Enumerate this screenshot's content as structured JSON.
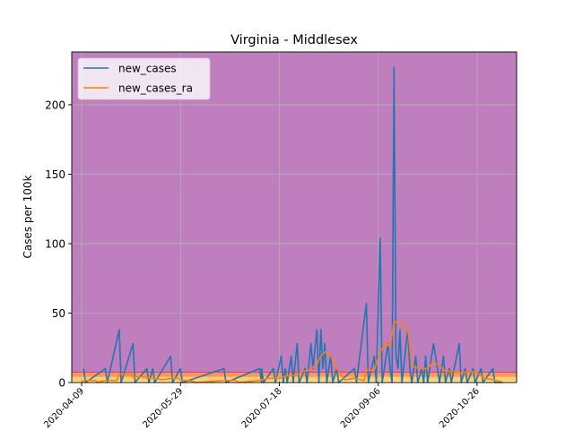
{
  "chart_data": {
    "type": "line",
    "title": "Virginia - Middlesex",
    "xlabel": "",
    "ylabel": "Cases per 100k",
    "x_ticks": [
      "2020-04-09",
      "2020-05-29",
      "2020-07-18",
      "2020-09-06",
      "2020-10-26"
    ],
    "xlim": [
      "2020-04-04",
      "2020-11-15"
    ],
    "ylim": [
      0,
      238
    ],
    "y_ticks": [
      0,
      50,
      100,
      150,
      200
    ],
    "grid": true,
    "legend_position": "top-left",
    "background_bands": [
      {
        "from": 0,
        "to": 1,
        "color": "#fff3b0"
      },
      {
        "from": 1,
        "to": 4,
        "color": "#ffd070"
      },
      {
        "from": 4,
        "to": 7,
        "color": "#f59a5a"
      },
      {
        "from": 7,
        "to": 8,
        "color": "#e0406a"
      },
      {
        "from": 8,
        "to": 238,
        "color": "#bf7fbf"
      }
    ],
    "series": [
      {
        "name": "new_cases",
        "color": "#1f77b4",
        "points": [
          [
            "2020-04-10",
            10
          ],
          [
            "2020-04-11",
            0
          ],
          [
            "2020-04-21",
            10
          ],
          [
            "2020-04-22",
            0
          ],
          [
            "2020-04-28",
            38
          ],
          [
            "2020-04-29",
            0
          ],
          [
            "2020-05-05",
            28
          ],
          [
            "2020-05-06",
            0
          ],
          [
            "2020-05-12",
            10
          ],
          [
            "2020-05-13",
            0
          ],
          [
            "2020-05-15",
            10
          ],
          [
            "2020-05-16",
            0
          ],
          [
            "2020-05-24",
            19
          ],
          [
            "2020-05-25",
            0
          ],
          [
            "2020-05-29",
            10
          ],
          [
            "2020-05-30",
            0
          ],
          [
            "2020-06-20",
            10
          ],
          [
            "2020-06-21",
            0
          ],
          [
            "2020-07-08",
            10
          ],
          [
            "2020-07-09",
            0
          ],
          [
            "2020-07-09",
            10
          ],
          [
            "2020-07-10",
            0
          ],
          [
            "2020-07-15",
            10
          ],
          [
            "2020-07-16",
            0
          ],
          [
            "2020-07-19",
            19
          ],
          [
            "2020-07-20",
            0
          ],
          [
            "2020-07-21",
            10
          ],
          [
            "2020-07-22",
            0
          ],
          [
            "2020-07-24",
            19
          ],
          [
            "2020-07-25",
            0
          ],
          [
            "2020-07-27",
            28
          ],
          [
            "2020-07-28",
            0
          ],
          [
            "2020-07-31",
            10
          ],
          [
            "2020-08-01",
            0
          ],
          [
            "2020-08-03",
            28
          ],
          [
            "2020-08-04",
            10
          ],
          [
            "2020-08-06",
            38
          ],
          [
            "2020-08-07",
            0
          ],
          [
            "2020-08-08",
            38
          ],
          [
            "2020-08-09",
            10
          ],
          [
            "2020-08-10",
            28
          ],
          [
            "2020-08-11",
            0
          ],
          [
            "2020-08-13",
            19
          ],
          [
            "2020-08-14",
            0
          ],
          [
            "2020-08-16",
            10
          ],
          [
            "2020-08-17",
            0
          ],
          [
            "2020-08-25",
            10
          ],
          [
            "2020-08-26",
            0
          ],
          [
            "2020-08-31",
            57
          ],
          [
            "2020-09-01",
            0
          ],
          [
            "2020-09-04",
            19
          ],
          [
            "2020-09-05",
            0
          ],
          [
            "2020-09-07",
            104
          ],
          [
            "2020-09-08",
            0
          ],
          [
            "2020-09-10",
            19
          ],
          [
            "2020-09-11",
            28
          ],
          [
            "2020-09-12",
            10
          ],
          [
            "2020-09-13",
            0
          ],
          [
            "2020-09-14",
            227
          ],
          [
            "2020-09-15",
            19
          ],
          [
            "2020-09-16",
            10
          ],
          [
            "2020-09-17",
            38
          ],
          [
            "2020-09-18",
            0
          ],
          [
            "2020-09-21",
            38
          ],
          [
            "2020-09-22",
            10
          ],
          [
            "2020-09-23",
            0
          ],
          [
            "2020-09-25",
            19
          ],
          [
            "2020-09-26",
            0
          ],
          [
            "2020-09-28",
            10
          ],
          [
            "2020-09-29",
            0
          ],
          [
            "2020-09-30",
            19
          ],
          [
            "2020-10-01",
            0
          ],
          [
            "2020-10-04",
            28
          ],
          [
            "2020-10-05",
            19
          ],
          [
            "2020-10-06",
            10
          ],
          [
            "2020-10-07",
            0
          ],
          [
            "2020-10-09",
            19
          ],
          [
            "2020-10-10",
            0
          ],
          [
            "2020-10-12",
            10
          ],
          [
            "2020-10-13",
            0
          ],
          [
            "2020-10-17",
            28
          ],
          [
            "2020-10-18",
            0
          ],
          [
            "2020-10-20",
            10
          ],
          [
            "2020-10-21",
            0
          ],
          [
            "2020-10-24",
            10
          ],
          [
            "2020-10-25",
            0
          ],
          [
            "2020-10-28",
            10
          ],
          [
            "2020-10-29",
            0
          ],
          [
            "2020-11-03",
            10
          ],
          [
            "2020-11-04",
            0
          ],
          [
            "2020-11-08",
            0
          ]
        ]
      },
      {
        "name": "new_cases_ra",
        "color": "#ff7f0e",
        "points": [
          [
            "2020-04-09",
            0
          ],
          [
            "2020-04-10",
            1.5
          ],
          [
            "2020-04-16",
            1.5
          ],
          [
            "2020-04-17",
            0
          ],
          [
            "2020-04-21",
            1.5
          ],
          [
            "2020-04-27",
            1.5
          ],
          [
            "2020-04-28",
            6
          ],
          [
            "2020-05-04",
            6
          ],
          [
            "2020-05-05",
            4
          ],
          [
            "2020-05-11",
            4
          ],
          [
            "2020-05-12",
            3
          ],
          [
            "2020-05-15",
            3
          ],
          [
            "2020-05-20",
            2
          ],
          [
            "2020-05-24",
            3
          ],
          [
            "2020-05-28",
            3
          ],
          [
            "2020-05-29",
            2
          ],
          [
            "2020-06-04",
            1
          ],
          [
            "2020-06-06",
            0
          ],
          [
            "2020-06-20",
            1.5
          ],
          [
            "2020-06-26",
            1.5
          ],
          [
            "2020-06-27",
            0
          ],
          [
            "2020-07-08",
            1.5
          ],
          [
            "2020-07-12",
            3
          ],
          [
            "2020-07-18",
            3
          ],
          [
            "2020-07-22",
            5
          ],
          [
            "2020-07-26",
            5
          ],
          [
            "2020-07-30",
            8
          ],
          [
            "2020-08-02",
            9
          ],
          [
            "2020-08-06",
            13
          ],
          [
            "2020-08-08",
            19
          ],
          [
            "2020-08-10",
            22
          ],
          [
            "2020-08-13",
            19
          ],
          [
            "2020-08-16",
            10
          ],
          [
            "2020-08-20",
            2
          ],
          [
            "2020-08-25",
            3
          ],
          [
            "2020-08-30",
            1.5
          ],
          [
            "2020-08-31",
            9
          ],
          [
            "2020-09-04",
            9
          ],
          [
            "2020-09-07",
            22
          ],
          [
            "2020-09-10",
            29
          ],
          [
            "2020-09-12",
            25
          ],
          [
            "2020-09-14",
            44
          ],
          [
            "2020-09-18",
            42
          ],
          [
            "2020-09-21",
            38
          ],
          [
            "2020-09-23",
            12
          ],
          [
            "2020-09-27",
            10
          ],
          [
            "2020-10-01",
            10
          ],
          [
            "2020-10-04",
            15
          ],
          [
            "2020-10-07",
            12
          ],
          [
            "2020-10-10",
            8
          ],
          [
            "2020-10-14",
            8
          ],
          [
            "2020-10-18",
            7
          ],
          [
            "2020-10-22",
            8
          ],
          [
            "2020-10-26",
            7
          ],
          [
            "2020-10-30",
            3
          ],
          [
            "2020-11-03",
            2
          ],
          [
            "2020-11-06",
            1
          ],
          [
            "2020-11-08",
            0
          ]
        ]
      }
    ]
  }
}
